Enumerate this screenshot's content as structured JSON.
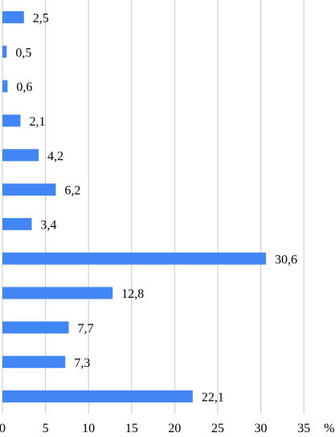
{
  "chart_data": {
    "type": "bar",
    "orientation": "horizontal",
    "values": [
      2.5,
      0.5,
      0.6,
      2.1,
      4.2,
      6.2,
      3.4,
      30.6,
      12.8,
      7.7,
      7.3,
      22.1
    ],
    "data_labels": [
      "2,5",
      "0,5",
      "0,6",
      "2,1",
      "4,2",
      "6,2",
      "3,4",
      "30,6",
      "12,8",
      "7,7",
      "7,3",
      "22,1"
    ],
    "x_ticks": [
      "0",
      "5",
      "10",
      "15",
      "20",
      "25",
      "30",
      "35"
    ],
    "x_unit": "%",
    "xlim": [
      0,
      35
    ],
    "grid": "vertical",
    "bar_color": "#4285f4",
    "grid_color": "#c8c8c8"
  }
}
